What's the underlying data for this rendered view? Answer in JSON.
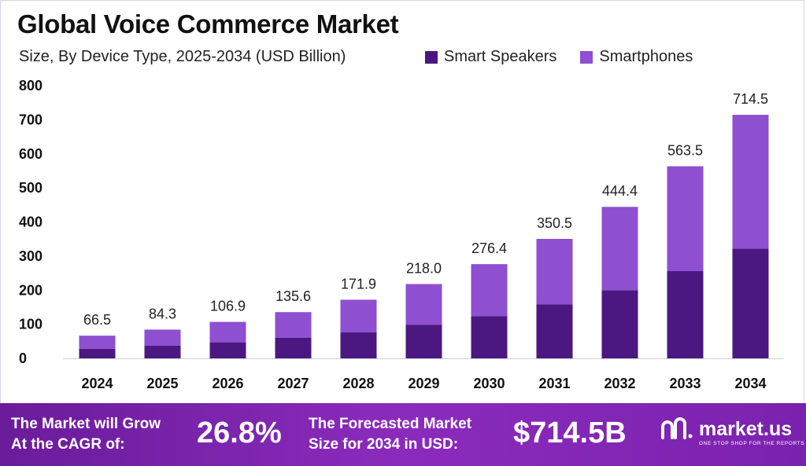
{
  "chart_data": {
    "type": "bar",
    "stacked": true,
    "title": "Global Voice Commerce Market",
    "subtitle": "Size, By Device Type, 2025-2034 (USD Billion)",
    "categories": [
      "2024",
      "2025",
      "2026",
      "2027",
      "2028",
      "2029",
      "2030",
      "2031",
      "2032",
      "2033",
      "2034"
    ],
    "totals": [
      "66.5",
      "84.3",
      "106.9",
      "135.6",
      "171.9",
      "218.0",
      "276.4",
      "350.5",
      "444.4",
      "563.5",
      "714.5"
    ],
    "series": [
      {
        "name": "Smart Speakers",
        "color": "#4b1780",
        "values": [
          28,
          37,
          47,
          60,
          76,
          98,
          124,
          158,
          200,
          256,
          322
        ]
      },
      {
        "name": "Smartphones",
        "color": "#8e4fd0",
        "values": [
          38.5,
          47.3,
          59.9,
          75.6,
          95.9,
          120.0,
          152.4,
          192.5,
          244.4,
          307.5,
          392.5
        ]
      }
    ],
    "yticks": [
      "0",
      "100",
      "200",
      "300",
      "400",
      "500",
      "600",
      "700",
      "800"
    ],
    "ylim": [
      0,
      800
    ],
    "legend_position": "top-right",
    "grid": false
  },
  "footer": {
    "cagr_label": "The Market will Grow\nAt the CAGR of:",
    "cagr_value": "26.8%",
    "forecast_label": "The Forecasted Market\nSize for 2034 in USD:",
    "forecast_value": "$714.5B",
    "brand_name": "market.us",
    "brand_tagline": "ONE STOP SHOP FOR THE REPORTS"
  }
}
